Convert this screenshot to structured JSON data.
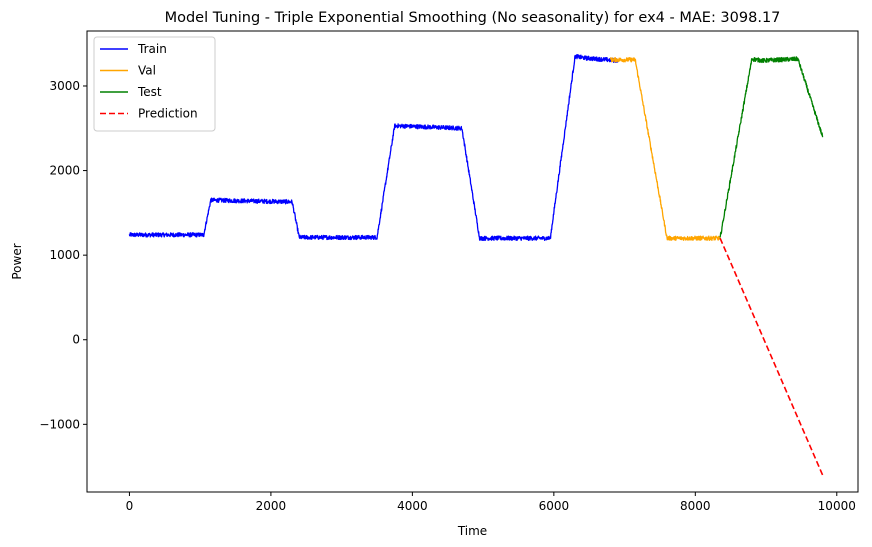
{
  "chart_data": {
    "type": "line",
    "title": "Model Tuning - Triple Exponential Smoothing (No seasonality) for ex4 - MAE: 3098.17",
    "xlabel": "Time",
    "ylabel": "Power",
    "xlim": [
      -600,
      10300
    ],
    "ylim": [
      -1800,
      3650
    ],
    "x_ticks": [
      0,
      2000,
      4000,
      6000,
      8000,
      10000
    ],
    "x_tick_labels": [
      "0",
      "2000",
      "4000",
      "6000",
      "8000",
      "10000"
    ],
    "y_ticks": [
      -1000,
      0,
      1000,
      2000,
      3000
    ],
    "y_tick_labels": [
      "−1000",
      "0",
      "1000",
      "2000",
      "3000"
    ],
    "grid": false,
    "legend_position": "top-left",
    "series": [
      {
        "name": "Train",
        "color": "#0000ff",
        "noise": 25,
        "points": [
          [
            0,
            1240
          ],
          [
            1050,
            1240
          ],
          [
            1150,
            1650
          ],
          [
            2300,
            1630
          ],
          [
            2400,
            1210
          ],
          [
            3500,
            1210
          ],
          [
            3750,
            2530
          ],
          [
            4700,
            2500
          ],
          [
            4950,
            1200
          ],
          [
            5950,
            1200
          ],
          [
            6300,
            3350
          ],
          [
            6450,
            3330
          ],
          [
            6900,
            3300
          ]
        ]
      },
      {
        "name": "Val",
        "color": "#ffa500",
        "noise": 25,
        "points": [
          [
            6800,
            3310
          ],
          [
            7150,
            3310
          ],
          [
            7600,
            1200
          ],
          [
            8350,
            1200
          ]
        ]
      },
      {
        "name": "Test",
        "color": "#008000",
        "noise": 25,
        "points": [
          [
            8350,
            1200
          ],
          [
            8800,
            3320
          ],
          [
            8950,
            3300
          ],
          [
            9450,
            3320
          ],
          [
            9800,
            2400
          ]
        ]
      },
      {
        "name": "Prediction",
        "color": "#ff0000",
        "dashed": true,
        "points": [
          [
            8350,
            1200
          ],
          [
            9800,
            -1600
          ]
        ]
      }
    ]
  }
}
